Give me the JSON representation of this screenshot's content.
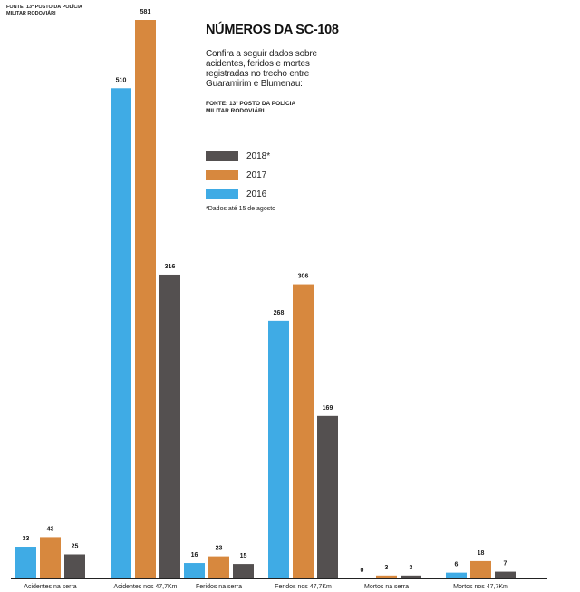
{
  "source_top": "Fonte: 13º Posto da Polícia Militar Rodoviári",
  "title": "NÚMEROS DA SC-108",
  "subtitle": "Confira a seguir dados sobre acidentes, feridos e mortes registradas no trecho entre Guaramirim e Blumenau:",
  "source": "Fonte: 13º Posto da Polícia Militar Rodoviári",
  "note": "*Dados até 15 de agosto",
  "legend": [
    {
      "label": "2018*",
      "color": "#545050"
    },
    {
      "label": "2017",
      "color": "#d7883e"
    },
    {
      "label": "2016",
      "color": "#3fabe5"
    }
  ],
  "chart_data": {
    "type": "bar",
    "title": "NÚMEROS DA SC-108",
    "categories": [
      "Acidentes na serra",
      "Acidentes nos 47,7Km",
      "Feridos na serra",
      "Feridos nos 47,7Km",
      "Mortos na serra",
      "Mortos nos 47,7Km"
    ],
    "series": [
      {
        "name": "2016",
        "color": "#3fabe5",
        "values": [
          33,
          510,
          16,
          268,
          0,
          6
        ]
      },
      {
        "name": "2017",
        "color": "#d7883e",
        "values": [
          43,
          581,
          23,
          306,
          3,
          18
        ]
      },
      {
        "name": "2018*",
        "color": "#545050",
        "values": [
          25,
          316,
          15,
          169,
          3,
          7
        ]
      }
    ],
    "ylim": [
      0,
      581
    ],
    "legend_position": "center-top",
    "grid": false,
    "xlabel": "",
    "ylabel": ""
  }
}
